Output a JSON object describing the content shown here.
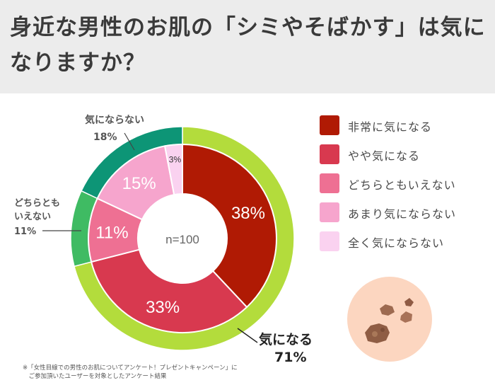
{
  "title": "身近な男性のお肌の「シミやそばかす」は気になりますか？",
  "chart_data": {
    "type": "pie",
    "center_label": "n=100",
    "categories": [
      "非常に気になる",
      "やや気になる",
      "どちらともいえない",
      "あまり気にならない",
      "全く気にならない"
    ],
    "values": [
      38,
      33,
      11,
      15,
      3
    ],
    "value_labels": [
      "38%",
      "33%",
      "11%",
      "15%",
      "3%"
    ],
    "colors": [
      "#b01a04",
      "#d8394f",
      "#ee7093",
      "#f6a5cd",
      "#fad2f0"
    ],
    "outer_ring": {
      "groups": [
        {
          "label": "気になる",
          "value_label": "71%",
          "value": 71,
          "color": "#b3dc3c"
        },
        {
          "label": "どちらともいえない",
          "value_label": "11%",
          "value": 11,
          "color": "#3fbb63"
        },
        {
          "label": "気にならない",
          "value_label": "18%",
          "value": 18,
          "color": "#0d9576"
        }
      ]
    }
  },
  "legend": [
    {
      "label": "非常に気になる",
      "color": "#b01a04"
    },
    {
      "label": "やや気になる",
      "color": "#d8394f"
    },
    {
      "label": "どちらともいえない",
      "color": "#ee7093"
    },
    {
      "label": "あまり気にならない",
      "color": "#f6a5cd"
    },
    {
      "label": "全く気にならない",
      "color": "#fad2f0"
    }
  ],
  "callouts": {
    "not_concerned": {
      "line1": "気にならない",
      "line2": "18%"
    },
    "neutral": {
      "line1": "どちらとも",
      "line2": "いえない",
      "line3": "11%"
    },
    "concerned": {
      "line1": "気になる",
      "line2": "71%"
    }
  },
  "footnote": "※「女性目線での男性のお肌についてアンケート！プレゼントキャンペーン」に\n　ご参加頂いたユーザーを対象としたアンケート結果",
  "illustration": "skin-spots-icon"
}
